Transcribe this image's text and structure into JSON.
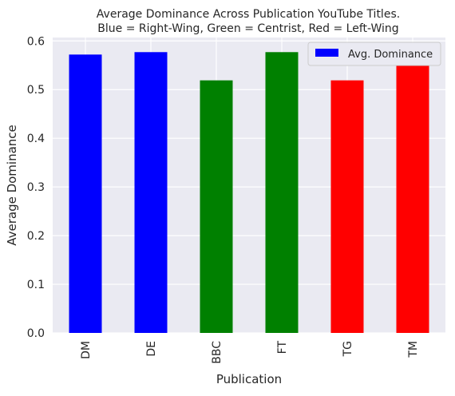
{
  "chart_data": {
    "type": "bar",
    "title": "Average Dominance Across Publication YouTube Titles.",
    "subtitle": "Blue = Right-Wing, Green = Centrist, Red = Left-Wing",
    "xlabel": "Publication",
    "ylabel": "Average Dominance",
    "categories": [
      "DM",
      "DE",
      "BBC",
      "FT",
      "TG",
      "TM"
    ],
    "series": [
      {
        "name": "Avg. Dominance",
        "values": [
          0.572,
          0.577,
          0.519,
          0.577,
          0.519,
          0.549
        ],
        "colors": [
          "#0000ff",
          "#0000ff",
          "#008000",
          "#008000",
          "#ff0000",
          "#ff0000"
        ],
        "legend_color": "#0000ff"
      }
    ],
    "ylim": [
      0,
      0.607
    ],
    "yticks": [
      "0.0",
      "0.1",
      "0.2",
      "0.3",
      "0.4",
      "0.5",
      "0.6"
    ],
    "grid": true,
    "legend_position": "top-right",
    "plot_background": "#eaeaf2"
  }
}
